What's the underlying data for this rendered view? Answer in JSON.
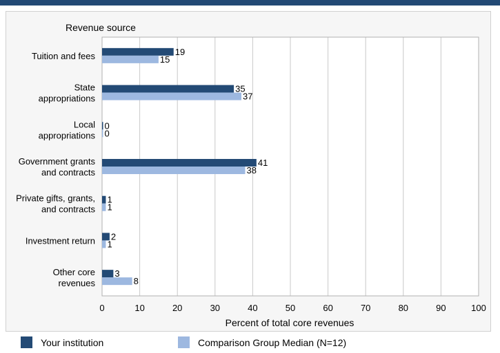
{
  "chart_data": {
    "type": "bar",
    "orientation": "horizontal",
    "category_axis_title": "Revenue source",
    "xlabel": "Percent of total core revenues",
    "xlim": [
      0,
      100
    ],
    "xticks": [
      0,
      10,
      20,
      30,
      40,
      50,
      60,
      70,
      80,
      90,
      100
    ],
    "grid": true,
    "categories": [
      [
        "Tuition and fees"
      ],
      [
        "State",
        "appropriations"
      ],
      [
        "Local",
        "appropriations"
      ],
      [
        "Government grants",
        "and contracts"
      ],
      [
        "Private gifts, grants,",
        "and contracts"
      ],
      [
        "Investment return"
      ],
      [
        "Other core",
        "revenues"
      ]
    ],
    "series": [
      {
        "name": "Your institution",
        "color": "#234a75",
        "values": [
          19,
          35,
          0,
          41,
          1,
          2,
          3
        ]
      },
      {
        "name": "Comparison Group Median (N=12)",
        "color": "#9db8e0",
        "values": [
          15,
          37,
          0,
          38,
          1,
          1,
          8
        ]
      }
    ],
    "legend_position": "bottom"
  }
}
